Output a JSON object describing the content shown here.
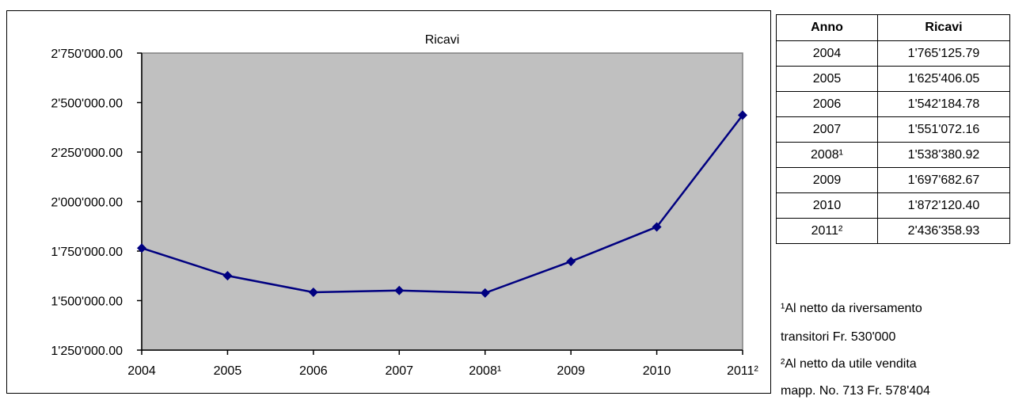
{
  "chart_data": {
    "type": "line",
    "title": "Ricavi",
    "categories": [
      "2004",
      "2005",
      "2006",
      "2007",
      "2008¹",
      "2009",
      "2010",
      "2011²"
    ],
    "series": [
      {
        "values": [
          1765125.79,
          1625406.05,
          1542184.78,
          1551072.16,
          1538380.92,
          1697682.67,
          1872120.4,
          2436358.93
        ]
      }
    ],
    "ylim": [
      1250000,
      2750000
    ],
    "yticks": [
      "1'250'000.00",
      "1'500'000.00",
      "1'750'000.00",
      "2'000'000.00",
      "2'250'000.00",
      "2'500'000.00",
      "2'750'000.00"
    ],
    "grid": false,
    "plot_background": "#c0c0c0",
    "line_color": "#000080"
  },
  "table": {
    "headers": [
      "Anno",
      "Ricavi"
    ],
    "rows": [
      [
        "2004",
        "1'765'125.79"
      ],
      [
        "2005",
        "1'625'406.05"
      ],
      [
        "2006",
        "1'542'184.78"
      ],
      [
        "2007",
        "1'551'072.16"
      ],
      [
        "2008¹",
        "1'538'380.92"
      ],
      [
        "2009",
        "1'697'682.67"
      ],
      [
        "2010",
        "1'872'120.40"
      ],
      [
        "2011²",
        "2'436'358.93"
      ]
    ]
  },
  "notes": [
    "¹Al netto da riversamento",
    "transitori Fr. 530'000",
    "²Al netto da utile vendita",
    "mapp. No. 713 Fr. 578'404"
  ]
}
